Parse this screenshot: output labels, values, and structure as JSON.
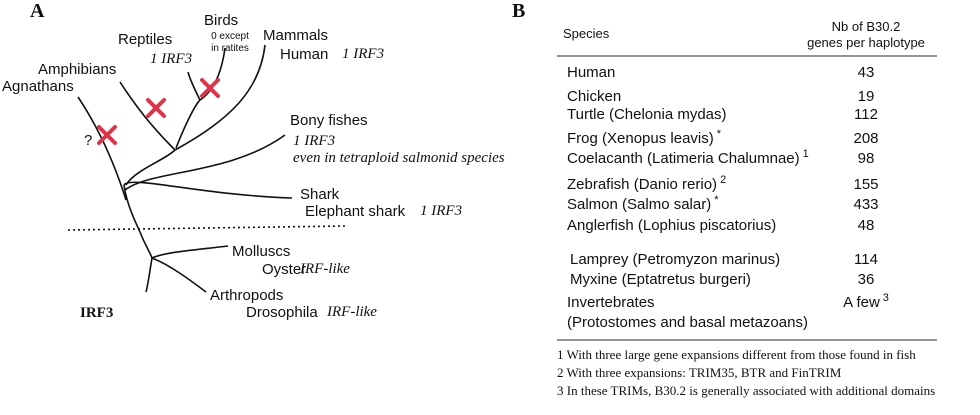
{
  "panel_a": {
    "label": "A",
    "title": "IRF3",
    "question": "?",
    "taxa": [
      {
        "group": "Agnathans"
      },
      {
        "group": "Amphibians"
      },
      {
        "group": "Reptiles",
        "irf": "1 IRF3"
      },
      {
        "group": "Birds",
        "note": [
          "0 except",
          "in ratites"
        ]
      },
      {
        "group": "Mammals",
        "species": "Human",
        "irf": "1 IRF3"
      },
      {
        "group": "Bony fishes",
        "irf": "1 IRF3",
        "note": "even in tetraploid salmonid species"
      },
      {
        "group": "Shark",
        "species": "Elephant shark",
        "irf": "1 IRF3"
      },
      {
        "group": "Molluscs",
        "species": "Oyster",
        "irf": "IRF-like"
      },
      {
        "group": "Arthropods",
        "species": "Drosophila",
        "irf": "IRF-like"
      }
    ]
  },
  "panel_b": {
    "label": "B",
    "table": {
      "header": [
        "Species",
        [
          "Nb of B30.2",
          "genes per haplotype"
        ]
      ],
      "rows": [
        {
          "species": [
            "Human"
          ],
          "value": "43"
        },
        {
          "species": [
            "Chicken"
          ],
          "value": "19"
        },
        {
          "species": [
            "Turtle (Chelonia mydas)"
          ],
          "value": "112"
        },
        {
          "species": [
            "Frog (Xenopus leavis)"
          ],
          "mark": "*",
          "value": "208"
        },
        {
          "species": [
            "Coelacanth (Latimeria Chalumnae)"
          ],
          "mark": "1",
          "value": "98"
        },
        {
          "species": [
            "Zebrafish (Danio rerio)"
          ],
          "mark": "2",
          "value": "155"
        },
        {
          "species": [
            "Salmon (Salmo salar)"
          ],
          "mark": "*",
          "value": "433"
        },
        {
          "species": [
            "Anglerfish (Lophius piscatorius)"
          ],
          "value": "48"
        },
        {
          "species": [
            "Lamprey (Petromyzon marinus)"
          ],
          "value": "114"
        },
        {
          "species": [
            "Myxine  (Eptatretus burgeri)"
          ],
          "value": "36"
        },
        {
          "species": [
            "Invertebrates",
            "(Protostomes and basal metazoans)"
          ],
          "value": "A few",
          "value_mark": "3"
        }
      ]
    },
    "footnotes": [
      "1 With three large gene expansions different from those found in fish",
      "2 With three expansions: TRIM35, BTR and FinTRIM",
      "3 In these TRIMs, B30.2 is generally associated with additional domains"
    ]
  }
}
